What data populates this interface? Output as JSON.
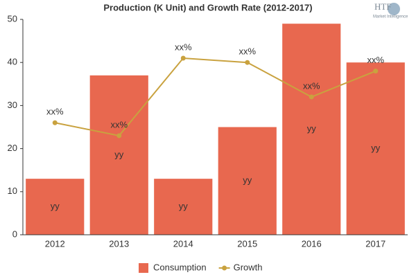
{
  "chart_data": {
    "type": "bar",
    "title": "Production (K Unit) and Growth Rate (2012-2017)",
    "logo": {
      "text": "HTF",
      "subtext": "Market Intelligence"
    },
    "categories": [
      "2012",
      "2013",
      "2014",
      "2015",
      "2016",
      "2017"
    ],
    "series": [
      {
        "name": "Consumption",
        "type": "bar",
        "color": "#e8684f",
        "values": [
          13,
          37,
          13,
          25,
          49,
          40
        ],
        "value_labels": [
          "yy",
          "yy",
          "yy",
          "yy",
          "yy",
          "yy"
        ]
      },
      {
        "name": "Growth",
        "type": "line",
        "color": "#c9a23f",
        "values": [
          26,
          23,
          41,
          40,
          32,
          38
        ],
        "value_labels": [
          "xx%",
          "xx%",
          "xx%",
          "xx%",
          "xx%",
          "xx%"
        ]
      }
    ],
    "ylim": [
      0,
      50
    ],
    "yticks": [
      0,
      10,
      20,
      30,
      40,
      50
    ],
    "grid": false,
    "legend": "bottom"
  }
}
